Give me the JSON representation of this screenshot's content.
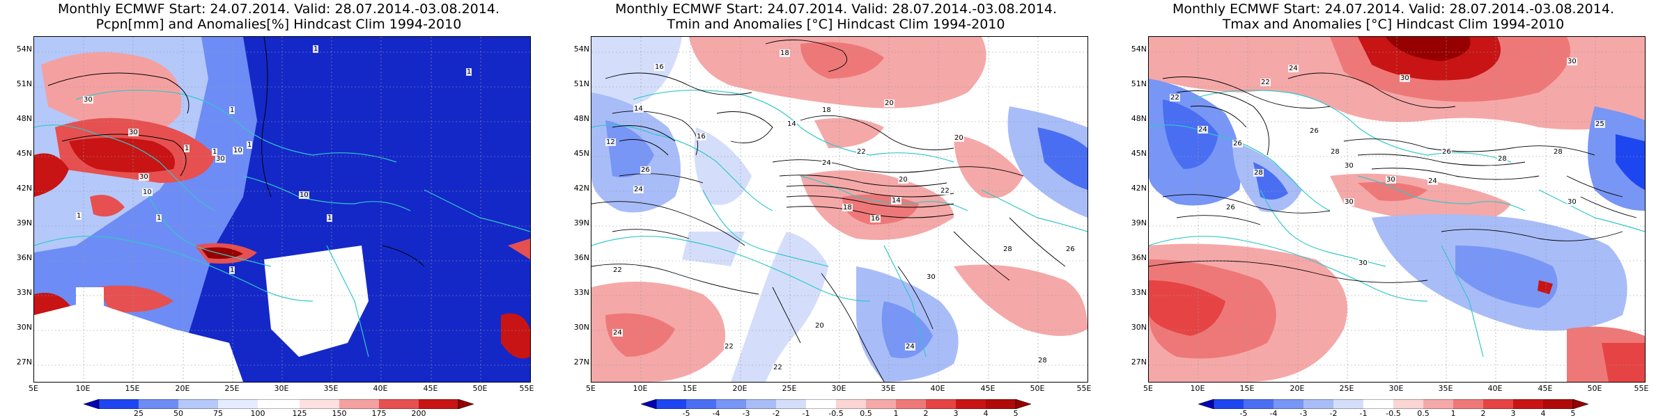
{
  "panels": [
    {
      "title_line1": "Monthly ECMWF Start: 24.07.2014. Valid: 28.07.2014.-03.08.2014.",
      "title_line2": "Pcpn[mm] and Anomalies[%] Hindcast Clim 1994-2010",
      "colorbar_ticks": [
        "25",
        "50",
        "75",
        "100",
        "125",
        "150",
        "175",
        "200"
      ],
      "colorbar_colors": [
        "#0000b4",
        "#1e46f0",
        "#6e8cf5",
        "#b4c8fa",
        "#e6ecff",
        "#ffffff",
        "#ffe0e0",
        "#f5a0a0",
        "#e65050",
        "#c81414",
        "#960000"
      ],
      "contour_labels": [
        "30",
        "30",
        "30",
        "10",
        "10",
        "10",
        "1",
        "1",
        "1",
        "1",
        "1",
        "1",
        "1",
        "1",
        "1",
        "30",
        "1"
      ],
      "map": {
        "base": "#1428c8"
      }
    },
    {
      "title_line1": "Monthly ECMWF Start: 24.07.2014. Valid: 28.07.2014.-03.08.2014.",
      "title_line2": "Tmin and Anomalies [°C] Hindcast Clim 1994-2010",
      "colorbar_ticks": [
        "-5",
        "-4",
        "-3",
        "-2",
        "-1",
        "-0.5",
        "0.5",
        "1",
        "2",
        "3",
        "4",
        "5"
      ],
      "colorbar_colors": [
        "#0000b4",
        "#1e46f0",
        "#4a6ef2",
        "#7896f5",
        "#a8bcf8",
        "#d4defb",
        "#ffffff",
        "#fbd4d4",
        "#f5a8a8",
        "#ee7878",
        "#e64444",
        "#c81414",
        "#960000"
      ],
      "contour_labels": [
        "18",
        "16",
        "14",
        "14",
        "16",
        "18",
        "20",
        "22",
        "24",
        "24",
        "20",
        "22",
        "20",
        "18",
        "16",
        "14",
        "12",
        "26",
        "22",
        "24",
        "22",
        "20",
        "28",
        "30",
        "22",
        "26",
        "24",
        "28"
      ],
      "map": {
        "base": "#ffffff"
      }
    },
    {
      "title_line1": "Monthly ECMWF Start: 24.07.2014. Valid: 28.07.2014.-03.08.2014.",
      "title_line2": "Tmax and Anomalies [°C] Hindcast Clim 1994-2010",
      "colorbar_ticks": [
        "-5",
        "-4",
        "-3",
        "-2",
        "-1",
        "-0.5",
        "0.5",
        "1",
        "2",
        "3",
        "4",
        "5"
      ],
      "colorbar_colors": [
        "#0000b4",
        "#1e46f0",
        "#4a6ef2",
        "#7896f5",
        "#a8bcf8",
        "#d4defb",
        "#ffffff",
        "#fbd4d4",
        "#f5a8a8",
        "#ee7878",
        "#e64444",
        "#c81414",
        "#960000"
      ],
      "contour_labels": [
        "22",
        "24",
        "30",
        "30",
        "22",
        "24",
        "26",
        "28",
        "26",
        "28",
        "30",
        "24",
        "26",
        "28",
        "30",
        "26",
        "30",
        "28",
        "30",
        "25",
        "30"
      ],
      "map": {
        "base": "#ffffff"
      }
    }
  ],
  "axes": {
    "lat_labels": [
      "54N",
      "51N",
      "48N",
      "45N",
      "42N",
      "39N",
      "36N",
      "33N",
      "30N",
      "27N"
    ],
    "lon_labels": [
      "5E",
      "10E",
      "15E",
      "20E",
      "25E",
      "30E",
      "35E",
      "40E",
      "45E",
      "50E",
      "55E"
    ]
  }
}
